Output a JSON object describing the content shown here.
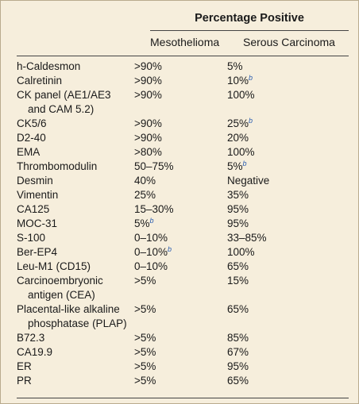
{
  "table": {
    "header": {
      "group": "Percentage Positive",
      "columns": [
        "Mesothelioma",
        "Serous Carcinoma"
      ]
    },
    "rows": [
      {
        "marker": [
          "h-Caldesmon"
        ],
        "meso": {
          "text": ">90%"
        },
        "serous": {
          "text": "5%"
        }
      },
      {
        "marker": [
          "Calretinin"
        ],
        "meso": {
          "text": ">90%"
        },
        "serous": {
          "text": "10%",
          "note": "b"
        }
      },
      {
        "marker": [
          "CK panel (AE1/AE3",
          "and CAM 5.2)"
        ],
        "meso": {
          "text": ">90%"
        },
        "serous": {
          "text": "100%"
        }
      },
      {
        "marker": [
          "CK5/6"
        ],
        "meso": {
          "text": ">90%"
        },
        "serous": {
          "text": "25%",
          "note": "b"
        }
      },
      {
        "marker": [
          "D2-40"
        ],
        "meso": {
          "text": ">90%"
        },
        "serous": {
          "text": "20%"
        }
      },
      {
        "marker": [
          "EMA"
        ],
        "meso": {
          "text": ">80%"
        },
        "serous": {
          "text": "100%"
        }
      },
      {
        "marker": [
          "Thrombomodulin"
        ],
        "meso": {
          "text": "50–75%"
        },
        "serous": {
          "text": "5%",
          "note": "b"
        }
      },
      {
        "marker": [
          "Desmin"
        ],
        "meso": {
          "text": "40%"
        },
        "serous": {
          "text": "Negative"
        }
      },
      {
        "marker": [
          "Vimentin"
        ],
        "meso": {
          "text": "25%"
        },
        "serous": {
          "text": "35%"
        }
      },
      {
        "marker": [
          "CA125"
        ],
        "meso": {
          "text": "15–30%"
        },
        "serous": {
          "text": "95%"
        }
      },
      {
        "marker": [
          "MOC-31"
        ],
        "meso": {
          "text": "5%",
          "note": "b"
        },
        "serous": {
          "text": "95%"
        }
      },
      {
        "marker": [
          "S-100"
        ],
        "meso": {
          "text": "0–10%"
        },
        "serous": {
          "text": "33–85%"
        }
      },
      {
        "marker": [
          "Ber-EP4"
        ],
        "meso": {
          "text": "0–10%",
          "note": "b"
        },
        "serous": {
          "text": "100%"
        }
      },
      {
        "marker": [
          "Leu-M1 (CD15)"
        ],
        "meso": {
          "text": "0–10%"
        },
        "serous": {
          "text": "65%"
        }
      },
      {
        "marker": [
          "Carcinoembryonic",
          "antigen (CEA)"
        ],
        "meso": {
          "text": ">5%"
        },
        "serous": {
          "text": "15%"
        }
      },
      {
        "marker": [
          "Placental-like alkaline",
          "phosphatase (PLAP)"
        ],
        "meso": {
          "text": ">5%"
        },
        "serous": {
          "text": "65%"
        }
      },
      {
        "marker": [
          "B72.3"
        ],
        "meso": {
          "text": ">5%"
        },
        "serous": {
          "text": "85%"
        }
      },
      {
        "marker": [
          "CA19.9"
        ],
        "meso": {
          "text": ">5%"
        },
        "serous": {
          "text": "67%"
        }
      },
      {
        "marker": [
          "ER"
        ],
        "meso": {
          "text": ">5%"
        },
        "serous": {
          "text": "95%"
        }
      },
      {
        "marker": [
          "PR"
        ],
        "meso": {
          "text": ">5%"
        },
        "serous": {
          "text": "65%"
        }
      }
    ]
  }
}
